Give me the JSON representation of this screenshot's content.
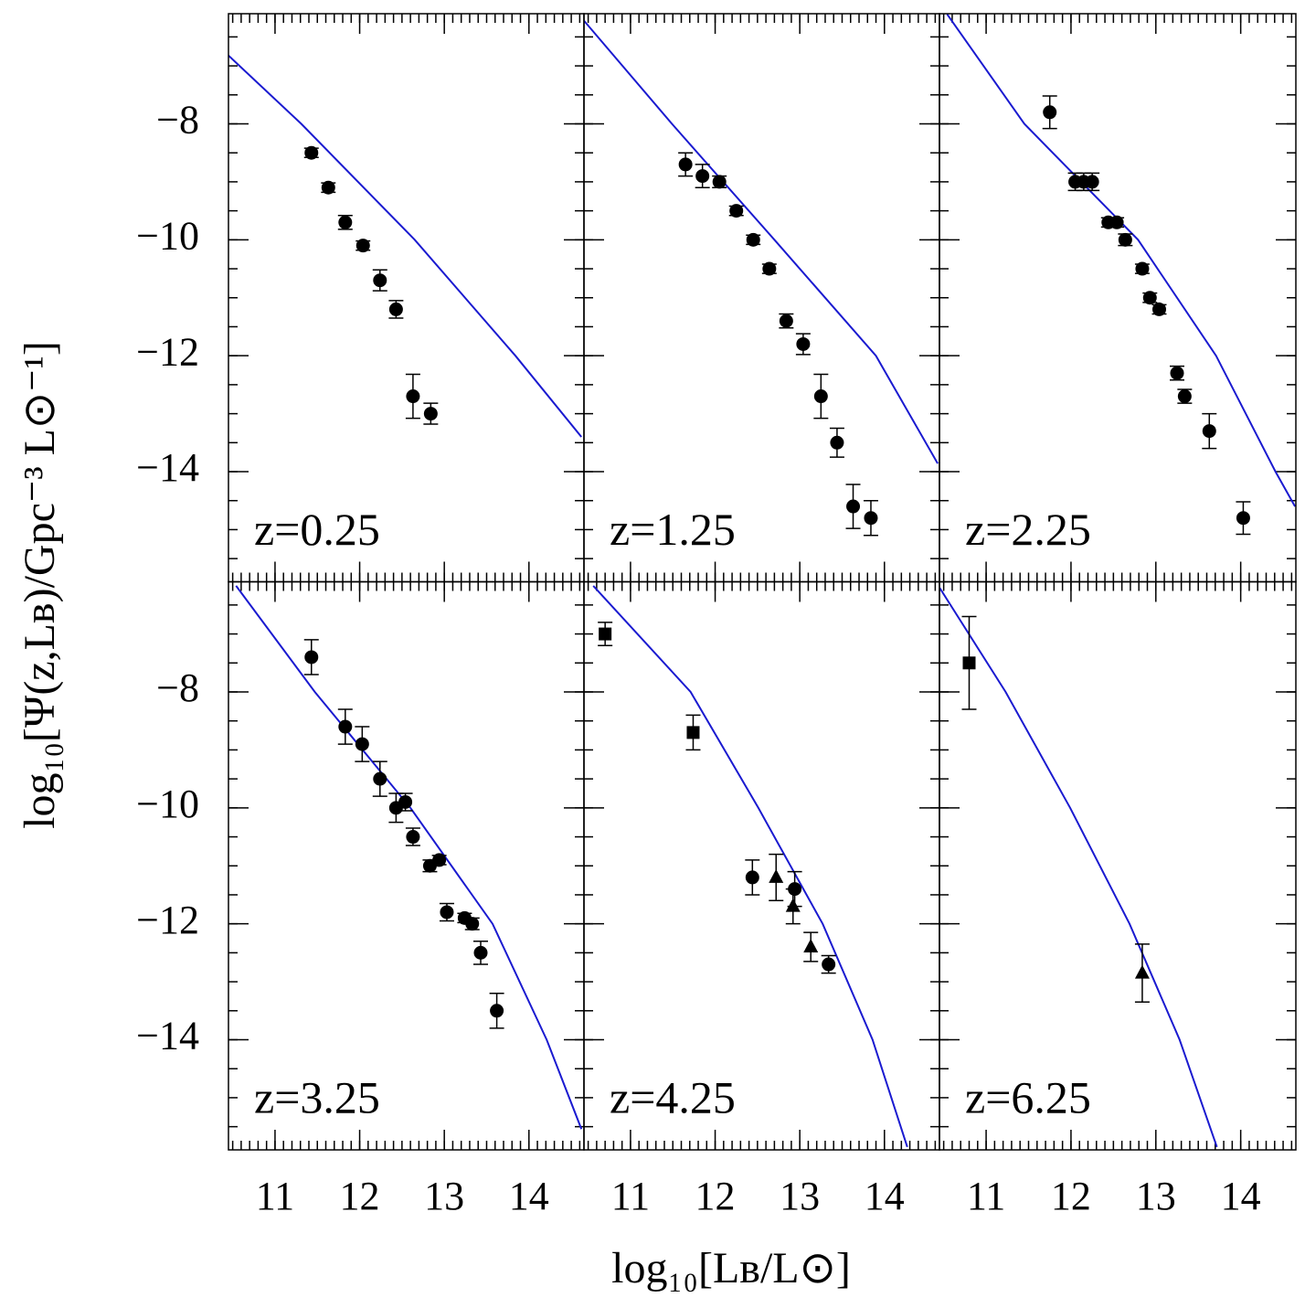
{
  "xlabel": "log₁₀[Lʙ/L⊙]",
  "ylabel": "log₁₀[Ψ(z,Lʙ)/Gpc⁻³ L⊙⁻¹]",
  "chart_data": [
    {
      "type": "scatter",
      "label": "z=0.25",
      "xlim": [
        10.45,
        14.65
      ],
      "ylim": [
        -15.9,
        -6.1
      ],
      "xticks": [
        11,
        12,
        13,
        14
      ],
      "yticks": [
        {
          "value": -14,
          "label": "−14"
        },
        {
          "value": -12,
          "label": "−12"
        },
        {
          "value": -10,
          "label": "−10"
        },
        {
          "value": -8,
          "label": "−8"
        }
      ],
      "xminor": 0.1,
      "yminor": 0.5,
      "series": [
        {
          "marker": "circle",
          "color": "#000000",
          "x": [
            11.43,
            11.63,
            11.83,
            12.04,
            12.24,
            12.43,
            12.63,
            12.84
          ],
          "values": [
            -8.5,
            -9.1,
            -9.7,
            -10.1,
            -10.7,
            -11.2,
            -12.7,
            -13.0
          ],
          "errors": [
            0.08,
            0.08,
            0.12,
            0.08,
            0.18,
            0.15,
            0.38,
            0.18
          ]
        }
      ],
      "curve": {
        "color": "#1a1ad0",
        "x": [
          10.45,
          11.31,
          12.65,
          13.84,
          14.62
        ],
        "values": [
          -6.82,
          -8,
          -10,
          -12,
          -13.4
        ]
      }
    },
    {
      "type": "scatter",
      "label": "z=1.25",
      "xlim": [
        10.45,
        14.65
      ],
      "ylim": [
        -15.9,
        -6.1
      ],
      "xticks": [
        11,
        12,
        13,
        14
      ],
      "yticks": [
        {
          "value": -14,
          "label": "−14"
        },
        {
          "value": -12,
          "label": "−12"
        },
        {
          "value": -10,
          "label": "−10"
        },
        {
          "value": -8,
          "label": "−8"
        }
      ],
      "xminor": 0.1,
      "yminor": 0.5,
      "series": [
        {
          "marker": "circle",
          "color": "#000000",
          "x": [
            11.65,
            11.85,
            12.05,
            12.25,
            12.45,
            12.64,
            12.84,
            13.04,
            13.25,
            13.44,
            13.63,
            13.84
          ],
          "values": [
            -8.7,
            -8.9,
            -9.0,
            -9.5,
            -10.0,
            -10.5,
            -11.4,
            -11.8,
            -12.7,
            -13.5,
            -14.6,
            -14.8
          ],
          "errors": [
            0.2,
            0.2,
            0.1,
            0.08,
            0.08,
            0.08,
            0.12,
            0.18,
            0.38,
            0.25,
            0.38,
            0.3
          ]
        }
      ],
      "curve": {
        "color": "#1a1ad0",
        "x": [
          10.45,
          11.49,
          12.7,
          13.9,
          14.63
        ],
        "values": [
          -6.22,
          -8,
          -10,
          -12,
          -13.86
        ]
      }
    },
    {
      "type": "scatter",
      "label": "z=2.25",
      "xlim": [
        10.45,
        14.65
      ],
      "ylim": [
        -15.9,
        -6.1
      ],
      "xticks": [
        11,
        12,
        13,
        14
      ],
      "yticks": [
        {
          "value": -14,
          "label": "−14"
        },
        {
          "value": -12,
          "label": "−12"
        },
        {
          "value": -10,
          "label": "−10"
        },
        {
          "value": -8,
          "label": "−8"
        }
      ],
      "xminor": 0.1,
      "yminor": 0.5,
      "series": [
        {
          "marker": "circle",
          "color": "#000000",
          "x": [
            11.75,
            12.05,
            12.15,
            12.25,
            12.44,
            12.54,
            12.64,
            12.84,
            12.93,
            13.04,
            13.25,
            13.34,
            13.63,
            14.03
          ],
          "values": [
            -7.8,
            -9,
            -9,
            -9,
            -9.7,
            -9.7,
            -10,
            -10.5,
            -11,
            -11.2,
            -12.3,
            -12.7,
            -13.3,
            -14.8
          ],
          "errors": [
            0.28,
            0.15,
            0.15,
            0.15,
            0.08,
            0.08,
            0.1,
            0.08,
            0.08,
            0.08,
            0.12,
            0.12,
            0.3,
            0.28
          ]
        }
      ],
      "curve": {
        "color": "#1a1ad0",
        "x": [
          10.54,
          11.45,
          12.79,
          13.71,
          14.41,
          14.64
        ],
        "values": [
          -6.11,
          -8,
          -10,
          -12,
          -14,
          -14.6
        ]
      }
    },
    {
      "type": "scatter",
      "label": "z=3.25",
      "xlim": [
        10.45,
        14.65
      ],
      "ylim": [
        -15.9,
        -6.1
      ],
      "xticks": [
        11,
        12,
        13,
        14
      ],
      "yticks": [
        {
          "value": -14,
          "label": "−14"
        },
        {
          "value": -12,
          "label": "−12"
        },
        {
          "value": -10,
          "label": "−10"
        },
        {
          "value": -8,
          "label": "−8"
        }
      ],
      "xminor": 0.1,
      "yminor": 0.5,
      "series": [
        {
          "marker": "circle",
          "color": "#000000",
          "x": [
            11.43,
            11.83,
            12.03,
            12.24,
            12.43,
            12.54,
            12.63,
            12.83,
            12.94,
            13.03,
            13.24,
            13.33,
            13.43,
            13.62
          ],
          "values": [
            -7.4,
            -8.6,
            -8.9,
            -9.5,
            -10,
            -9.9,
            -10.5,
            -11,
            -10.9,
            -11.8,
            -11.9,
            -12,
            -12.5,
            -13.5
          ],
          "errors": [
            0.3,
            0.3,
            0.3,
            0.3,
            0.25,
            0.15,
            0.15,
            0.1,
            0.08,
            0.15,
            0.08,
            0.1,
            0.2,
            0.3
          ]
        }
      ],
      "curve": {
        "color": "#1a1ad0",
        "x": [
          10.54,
          11.47,
          12.6,
          13.57,
          14.21,
          14.62
        ],
        "values": [
          -6.17,
          -8,
          -10,
          -12,
          -14,
          -15.54
        ]
      }
    },
    {
      "type": "scatter",
      "label": "z=4.25",
      "xlim": [
        10.45,
        14.65
      ],
      "ylim": [
        -15.9,
        -6.1
      ],
      "xticks": [
        11,
        12,
        13,
        14
      ],
      "yticks": [
        {
          "value": -14,
          "label": "−14"
        },
        {
          "value": -12,
          "label": "−12"
        },
        {
          "value": -10,
          "label": "−10"
        },
        {
          "value": -8,
          "label": "−8"
        }
      ],
      "xminor": 0.1,
      "yminor": 0.5,
      "series": [
        {
          "marker": "square",
          "color": "#000000",
          "x": [
            10.7,
            11.74
          ],
          "values": [
            -7.0,
            -8.7
          ],
          "errors": [
            0.2,
            0.3
          ]
        },
        {
          "marker": "circle",
          "color": "#000000",
          "x": [
            12.44,
            12.94,
            13.34
          ],
          "values": [
            -11.2,
            -11.4,
            -12.7
          ],
          "errors": [
            0.3,
            0.3,
            0.15
          ]
        },
        {
          "marker": "triangle",
          "color": "#000000",
          "x": [
            12.72,
            12.92,
            13.13
          ],
          "values": [
            -11.2,
            -11.7,
            -12.4
          ],
          "errors": [
            0.4,
            0.3,
            0.25
          ]
        }
      ],
      "curve": {
        "color": "#1a1ad0",
        "x": [
          10.56,
          11.71,
          12.51,
          13.27,
          13.86,
          14.27
        ],
        "values": [
          -6.17,
          -8,
          -10,
          -12,
          -14,
          -15.85
        ]
      }
    },
    {
      "type": "scatter",
      "label": "z=6.25",
      "xlim": [
        10.45,
        14.65
      ],
      "ylim": [
        -15.9,
        -6.1
      ],
      "xticks": [
        11,
        12,
        13,
        14
      ],
      "yticks": [
        {
          "value": -14,
          "label": "−14"
        },
        {
          "value": -12,
          "label": "−12"
        },
        {
          "value": -10,
          "label": "−10"
        },
        {
          "value": -8,
          "label": "−8"
        }
      ],
      "xminor": 0.1,
      "yminor": 0.5,
      "series": [
        {
          "marker": "square",
          "color": "#000000",
          "x": [
            10.8
          ],
          "values": [
            -7.5
          ],
          "errors": [
            0.8
          ]
        },
        {
          "marker": "triangle",
          "color": "#000000",
          "x": [
            12.84
          ],
          "values": [
            -12.85
          ],
          "errors": [
            0.5
          ]
        }
      ],
      "curve": {
        "color": "#1a1ad0",
        "x": [
          10.45,
          11.23,
          11.99,
          12.69,
          13.28,
          13.72
        ],
        "values": [
          -6.2,
          -8,
          -10,
          -12,
          -14,
          -15.85
        ]
      }
    }
  ]
}
